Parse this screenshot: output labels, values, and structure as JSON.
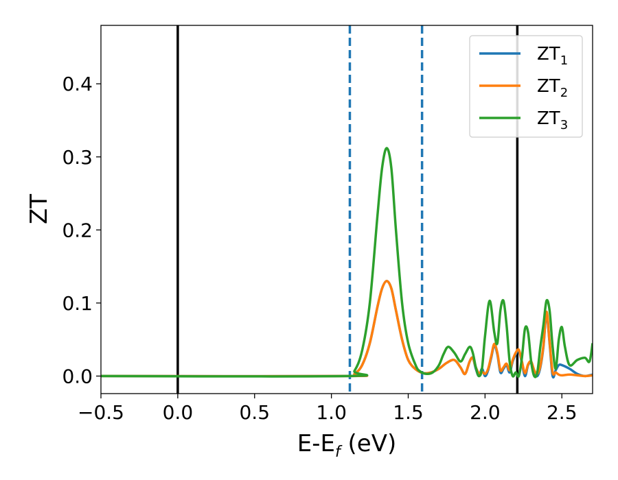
{
  "chart_data": {
    "type": "line",
    "xlabel": "E-E",
    "xlabel_sub": "f",
    "xlabel_unit": " (eV)",
    "ylabel": "ZT",
    "xlim": [
      -0.5,
      2.7
    ],
    "ylim": [
      -0.024,
      0.48
    ],
    "xticks": [
      {
        "value": -0.5,
        "label": "−0.5"
      },
      {
        "value": 0.0,
        "label": "0.0"
      },
      {
        "value": 0.5,
        "label": "0.5"
      },
      {
        "value": 1.0,
        "label": "1.0"
      },
      {
        "value": 1.5,
        "label": "1.5"
      },
      {
        "value": 2.0,
        "label": "2.0"
      },
      {
        "value": 2.5,
        "label": "2.5"
      }
    ],
    "yticks": [
      {
        "value": 0.0,
        "label": "0.0"
      },
      {
        "value": 0.1,
        "label": "0.1"
      },
      {
        "value": 0.2,
        "label": "0.2"
      },
      {
        "value": 0.3,
        "label": "0.3"
      },
      {
        "value": 0.4,
        "label": "0.4"
      }
    ],
    "grid": false,
    "legend_position": "top-right",
    "vlines": [
      {
        "x": 0.0,
        "color": "#000000",
        "style": "solid"
      },
      {
        "x": 2.21,
        "color": "#000000",
        "style": "solid"
      },
      {
        "x": 1.12,
        "color": "#1f77b4",
        "style": "dashed"
      },
      {
        "x": 1.59,
        "color": "#1f77b4",
        "style": "dashed"
      }
    ],
    "series": [
      {
        "name": "ZT",
        "name_sub": "1",
        "color": "#1f77b4",
        "x": [
          -0.5,
          1.1,
          1.15,
          1.2,
          1.25,
          1.3,
          1.33,
          1.36,
          1.39,
          1.42,
          1.46,
          1.5,
          1.55,
          1.6,
          1.65,
          1.7,
          1.75,
          1.8,
          1.84,
          1.87,
          1.9,
          1.92,
          1.94,
          1.96,
          1.98,
          2.0,
          2.02,
          2.04,
          2.06,
          2.08,
          2.1,
          2.12,
          2.14,
          2.16,
          2.18,
          2.2,
          2.22,
          2.24,
          2.26,
          2.28,
          2.3,
          2.32,
          2.34,
          2.36,
          2.38,
          2.4,
          2.42,
          2.44,
          2.46,
          2.48,
          2.5,
          2.55,
          2.6,
          2.65,
          2.7
        ],
        "y": [
          0.0,
          0.0,
          0.003,
          0.015,
          0.045,
          0.095,
          0.12,
          0.13,
          0.12,
          0.09,
          0.05,
          0.022,
          0.009,
          0.004,
          0.005,
          0.01,
          0.018,
          0.022,
          0.012,
          0.003,
          0.02,
          0.025,
          0.01,
          0.0,
          0.01,
          0.0,
          0.008,
          0.025,
          0.042,
          0.03,
          0.005,
          0.01,
          0.015,
          0.005,
          0.02,
          0.03,
          0.035,
          0.018,
          0.0,
          0.015,
          0.018,
          0.005,
          0.0,
          0.012,
          0.04,
          0.085,
          0.045,
          0.0,
          0.008,
          0.015,
          0.015,
          0.01,
          0.003,
          0.0,
          0.002
        ]
      },
      {
        "name": "ZT",
        "name_sub": "2",
        "color": "#ff7f0e",
        "x": [
          -0.5,
          1.1,
          1.15,
          1.2,
          1.25,
          1.3,
          1.33,
          1.36,
          1.39,
          1.42,
          1.46,
          1.5,
          1.55,
          1.6,
          1.65,
          1.7,
          1.75,
          1.8,
          1.84,
          1.87,
          1.9,
          1.92,
          1.94,
          1.96,
          1.98,
          2.0,
          2.02,
          2.04,
          2.06,
          2.08,
          2.1,
          2.12,
          2.14,
          2.16,
          2.18,
          2.2,
          2.22,
          2.24,
          2.26,
          2.28,
          2.3,
          2.32,
          2.34,
          2.36,
          2.38,
          2.4,
          2.42,
          2.44,
          2.46,
          2.48,
          2.5,
          2.55,
          2.6,
          2.65,
          2.7
        ],
        "y": [
          0.0,
          0.0,
          0.003,
          0.015,
          0.045,
          0.095,
          0.12,
          0.13,
          0.12,
          0.09,
          0.05,
          0.022,
          0.009,
          0.004,
          0.005,
          0.01,
          0.018,
          0.022,
          0.012,
          0.003,
          0.02,
          0.025,
          0.012,
          0.004,
          0.006,
          0.003,
          0.01,
          0.027,
          0.044,
          0.032,
          0.008,
          0.012,
          0.017,
          0.008,
          0.022,
          0.032,
          0.036,
          0.02,
          0.004,
          0.016,
          0.02,
          0.008,
          0.003,
          0.014,
          0.042,
          0.088,
          0.047,
          0.005,
          0.005,
          0.002,
          0.001,
          0.002,
          0.001,
          0.0,
          0.001
        ]
      },
      {
        "name": "ZT",
        "name_sub": "3",
        "color": "#2ca02c",
        "x": [
          -0.5,
          1.1,
          1.15,
          1.2,
          1.25,
          1.3,
          1.33,
          1.36,
          1.39,
          1.42,
          1.46,
          1.5,
          1.55,
          1.58,
          1.62,
          1.66,
          1.7,
          1.73,
          1.76,
          1.8,
          1.84,
          1.87,
          1.9,
          1.92,
          1.94,
          1.96,
          1.98,
          2.0,
          2.03,
          2.06,
          2.08,
          2.1,
          2.12,
          2.14,
          2.16,
          2.18,
          2.2,
          2.22,
          2.24,
          2.26,
          2.28,
          2.3,
          2.32,
          2.34,
          2.36,
          2.38,
          2.4,
          2.42,
          2.44,
          2.46,
          2.48,
          2.5,
          2.52,
          2.55,
          2.6,
          2.65,
          2.68,
          2.7
        ],
        "y": [
          0.0,
          0.0,
          0.007,
          0.035,
          0.1,
          0.22,
          0.285,
          0.312,
          0.285,
          0.2,
          0.1,
          0.045,
          0.014,
          0.006,
          0.003,
          0.005,
          0.015,
          0.03,
          0.04,
          0.032,
          0.02,
          0.03,
          0.04,
          0.032,
          0.012,
          0.0,
          0.01,
          0.055,
          0.103,
          0.06,
          0.045,
          0.09,
          0.103,
          0.07,
          0.02,
          0.0,
          0.005,
          0.0,
          0.025,
          0.065,
          0.06,
          0.02,
          0.0,
          0.005,
          0.04,
          0.07,
          0.103,
          0.09,
          0.04,
          0.01,
          0.05,
          0.067,
          0.04,
          0.015,
          0.022,
          0.025,
          0.02,
          0.045
        ]
      }
    ]
  }
}
